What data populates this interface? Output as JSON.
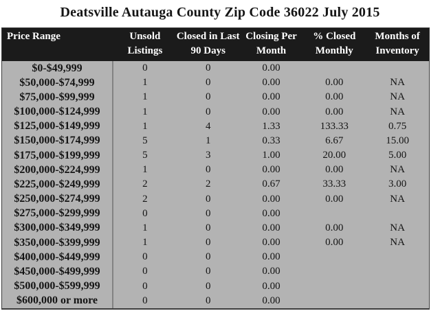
{
  "title": "Deatsville Autauga County Zip Code 36022 July 2015",
  "colors": {
    "header_background": "#1b1b1b",
    "header_text": "#ffffff",
    "body_background": "#b3b3b3",
    "body_text": "#141414",
    "column_divider": "#828282",
    "table_border": "#3c3c3c",
    "page_background": "#ffffff"
  },
  "chart_data": {
    "type": "table",
    "title": "Deatsville Autauga County Zip Code 36022 July 2015",
    "columns": [
      "Price Range",
      "Unsold Listings",
      "Closed in Last 90 Days",
      "Closing Per Month",
      "% Closed Monthly",
      "Months of Inventory"
    ],
    "rows": [
      [
        "$0-$49,999",
        "0",
        "0",
        "0.00",
        "",
        ""
      ],
      [
        "$50,000-$74,999",
        "1",
        "0",
        "0.00",
        "0.00",
        "NA"
      ],
      [
        "$75,000-$99,999",
        "1",
        "0",
        "0.00",
        "0.00",
        "NA"
      ],
      [
        "$100,000-$124,999",
        "1",
        "0",
        "0.00",
        "0.00",
        "NA"
      ],
      [
        "$125,000-$149,999",
        "1",
        "4",
        "1.33",
        "133.33",
        "0.75"
      ],
      [
        "$150,000-$174,999",
        "5",
        "1",
        "0.33",
        "6.67",
        "15.00"
      ],
      [
        "$175,000-$199,999",
        "5",
        "3",
        "1.00",
        "20.00",
        "5.00"
      ],
      [
        "$200,000-$224,999",
        "1",
        "0",
        "0.00",
        "0.00",
        "NA"
      ],
      [
        "$225,000-$249,999",
        "2",
        "2",
        "0.67",
        "33.33",
        "3.00"
      ],
      [
        "$250,000-$274,999",
        "2",
        "0",
        "0.00",
        "0.00",
        "NA"
      ],
      [
        "$275,000-$299,999",
        "0",
        "0",
        "0.00",
        "",
        ""
      ],
      [
        "$300,000-$349,999",
        "1",
        "0",
        "0.00",
        "0.00",
        "NA"
      ],
      [
        "$350,000-$399,999",
        "1",
        "0",
        "0.00",
        "0.00",
        "NA"
      ],
      [
        "$400,000-$449,999",
        "0",
        "0",
        "0.00",
        "",
        ""
      ],
      [
        "$450,000-$499,999",
        "0",
        "0",
        "0.00",
        "",
        ""
      ],
      [
        "$500,000-$599,999",
        "0",
        "0",
        "0.00",
        "",
        ""
      ],
      [
        "$600,000 or more",
        "0",
        "0",
        "0.00",
        "",
        ""
      ]
    ]
  }
}
